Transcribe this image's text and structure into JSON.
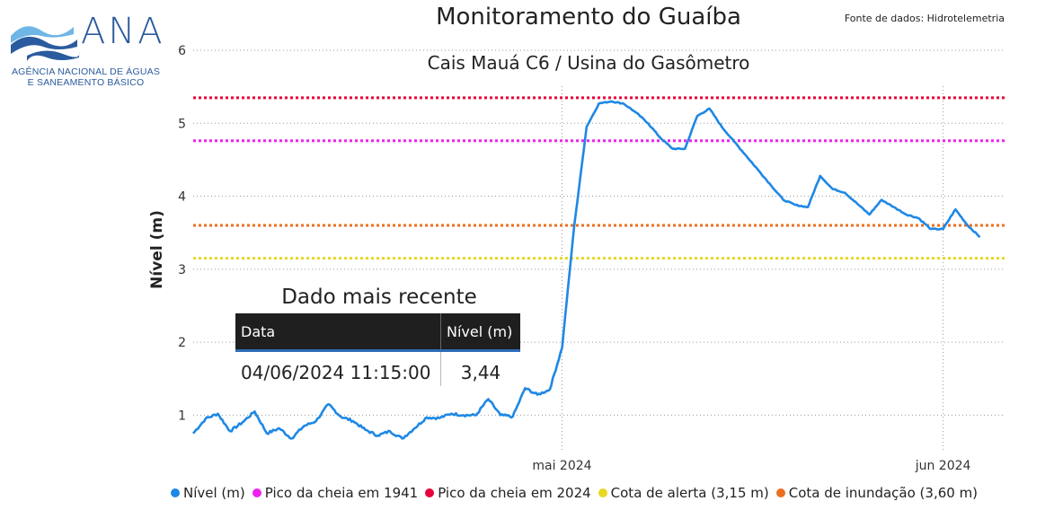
{
  "header": {
    "title": "Monitoramento do Guaíba",
    "subtitle": "Cais Mauá C6 / Usina do Gasômetro",
    "source": "Fonte de dados: Hidrotelemetria"
  },
  "logo": {
    "name": "ANA",
    "line1": "AGÊNCIA NACIONAL DE ÁGUAS",
    "line2": "E SANEAMENTO BÁSICO",
    "colors": {
      "dark": "#2a5b9e",
      "light": "#6fb6e6"
    }
  },
  "recent": {
    "title": "Dado mais recente",
    "col_date": "Data",
    "col_level": "Nível (m)",
    "date_value": "04/06/2024 11:15:00",
    "level_value": "3,44"
  },
  "chart_data": {
    "type": "line",
    "ylabel": "Nível (m)",
    "ylim": [
      0.5,
      6
    ],
    "yticks": [
      1,
      2,
      3,
      4,
      5,
      6
    ],
    "xlim": [
      "2024-04-01",
      "2024-06-06"
    ],
    "xticks": [
      {
        "date": "2024-05-01",
        "label": "mai 2024"
      },
      {
        "date": "2024-06-01",
        "label": "jun 2024"
      }
    ],
    "grid": true,
    "legend_position": "bottom",
    "series": [
      {
        "name": "Nível (m)",
        "color": "#1e88e5",
        "x": [
          "2024-04-01",
          "2024-04-02",
          "2024-04-03",
          "2024-04-04",
          "2024-04-05",
          "2024-04-06",
          "2024-04-07",
          "2024-04-08",
          "2024-04-09",
          "2024-04-10",
          "2024-04-11",
          "2024-04-12",
          "2024-04-13",
          "2024-04-14",
          "2024-04-15",
          "2024-04-16",
          "2024-04-17",
          "2024-04-18",
          "2024-04-19",
          "2024-04-20",
          "2024-04-21",
          "2024-04-22",
          "2024-04-23",
          "2024-04-24",
          "2024-04-25",
          "2024-04-26",
          "2024-04-27",
          "2024-04-28",
          "2024-04-29",
          "2024-04-30",
          "2024-05-01",
          "2024-05-02",
          "2024-05-03",
          "2024-05-04",
          "2024-05-05",
          "2024-05-06",
          "2024-05-07",
          "2024-05-08",
          "2024-05-09",
          "2024-05-10",
          "2024-05-11",
          "2024-05-12",
          "2024-05-13",
          "2024-05-14",
          "2024-05-15",
          "2024-05-16",
          "2024-05-17",
          "2024-05-18",
          "2024-05-19",
          "2024-05-20",
          "2024-05-21",
          "2024-05-22",
          "2024-05-23",
          "2024-05-24",
          "2024-05-25",
          "2024-05-26",
          "2024-05-27",
          "2024-05-28",
          "2024-05-29",
          "2024-05-30",
          "2024-05-31",
          "2024-06-01",
          "2024-06-02",
          "2024-06-03",
          "2024-06-04"
        ],
        "y": [
          0.75,
          0.95,
          1.02,
          0.78,
          0.9,
          1.05,
          0.75,
          0.82,
          0.68,
          0.85,
          0.92,
          1.15,
          0.98,
          0.92,
          0.8,
          0.72,
          0.78,
          0.68,
          0.82,
          0.97,
          0.96,
          1.02,
          1.0,
          1.0,
          1.22,
          1.0,
          0.98,
          1.37,
          1.28,
          1.35,
          1.92,
          3.6,
          4.95,
          5.27,
          5.3,
          5.27,
          5.15,
          5.0,
          4.8,
          4.65,
          4.65,
          5.1,
          5.2,
          4.95,
          4.75,
          4.55,
          4.35,
          4.15,
          3.95,
          3.88,
          3.85,
          4.28,
          4.1,
          4.05,
          3.9,
          3.75,
          3.95,
          3.85,
          3.75,
          3.7,
          3.55,
          3.55,
          3.82,
          3.6,
          3.44
        ]
      }
    ],
    "reference_lines": [
      {
        "name": "Pico da cheia em 1941",
        "value": 4.76,
        "color": "#ee22ee"
      },
      {
        "name": "Pico da cheia em 2024",
        "value": 5.35,
        "color": "#e8003a"
      },
      {
        "name": "Cota de alerta (3,15 m)",
        "value": 3.15,
        "color": "#e8d820"
      },
      {
        "name": "Cota de inundação (3,60 m)",
        "value": 3.6,
        "color": "#ec6f1f"
      }
    ]
  }
}
